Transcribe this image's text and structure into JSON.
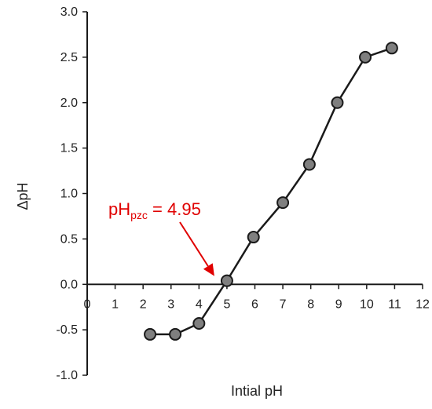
{
  "chart_data": {
    "type": "scatter",
    "title": "",
    "xlabel": "Intial pH",
    "ylabel": "ΔpH",
    "xlim": [
      0,
      12
    ],
    "ylim": [
      -1.0,
      3.0
    ],
    "x_ticks": [
      0,
      1,
      2,
      3,
      4,
      5,
      6,
      7,
      8,
      9,
      10,
      11,
      12
    ],
    "x_tick_labels": [
      "0",
      "1",
      "2",
      "3",
      "4",
      "5",
      "6",
      "7",
      "8",
      "9",
      "10",
      "11",
      "12"
    ],
    "y_ticks": [
      -1.0,
      -0.5,
      0.0,
      0.5,
      1.0,
      1.5,
      2.0,
      2.5,
      3.0
    ],
    "y_tick_labels": [
      "-1.0",
      "-0.5",
      "0.0",
      "0.5",
      "1.0",
      "1.5",
      "2.0",
      "2.5",
      "3.0"
    ],
    "x_axis_crosses_at_y": 0,
    "grid": false,
    "series": [
      {
        "x": [
          2.25,
          3.15,
          4.0,
          5.0,
          5.95,
          7.0,
          7.95,
          8.95,
          9.95,
          10.9
        ],
        "y": [
          -0.55,
          -0.55,
          -0.43,
          0.04,
          0.52,
          0.9,
          1.32,
          2.0,
          2.5,
          2.6
        ],
        "color": "#1a1a1a",
        "marker_fill": "#7f7f7f",
        "line": true
      }
    ],
    "annotations": [
      {
        "text_main": "pH",
        "text_sub": "pzc",
        "text_rest": " = 4.95",
        "color": "#e00000",
        "arrow_to": [
          4.55,
          0.04
        ]
      }
    ]
  }
}
